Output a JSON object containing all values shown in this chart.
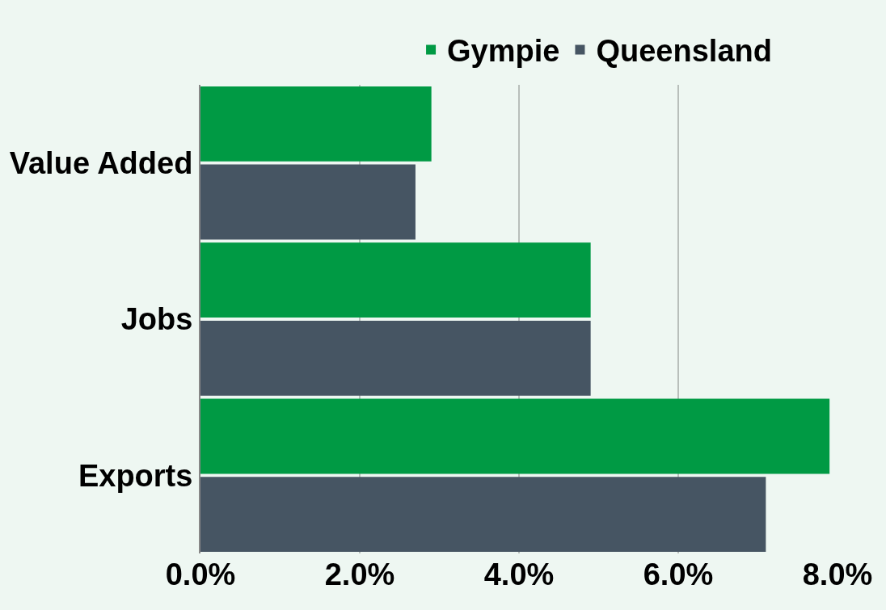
{
  "chart_data": {
    "type": "bar",
    "orientation": "horizontal",
    "categories": [
      "Value Added",
      "Jobs",
      "Exports"
    ],
    "series": [
      {
        "name": "Gympie",
        "color": "#009a44",
        "values": [
          2.9,
          4.9,
          7.9
        ]
      },
      {
        "name": "Queensland",
        "color": "#465563",
        "values": [
          2.7,
          4.9,
          7.1
        ]
      }
    ],
    "xlim": [
      0,
      8
    ],
    "xticks": [
      {
        "value": 0,
        "label": "0.0%"
      },
      {
        "value": 2,
        "label": "2.0%"
      },
      {
        "value": 4,
        "label": "4.0%"
      },
      {
        "value": 6,
        "label": "6.0%"
      },
      {
        "value": 8,
        "label": "8.0%"
      }
    ],
    "grid": "x",
    "legend": "top"
  }
}
